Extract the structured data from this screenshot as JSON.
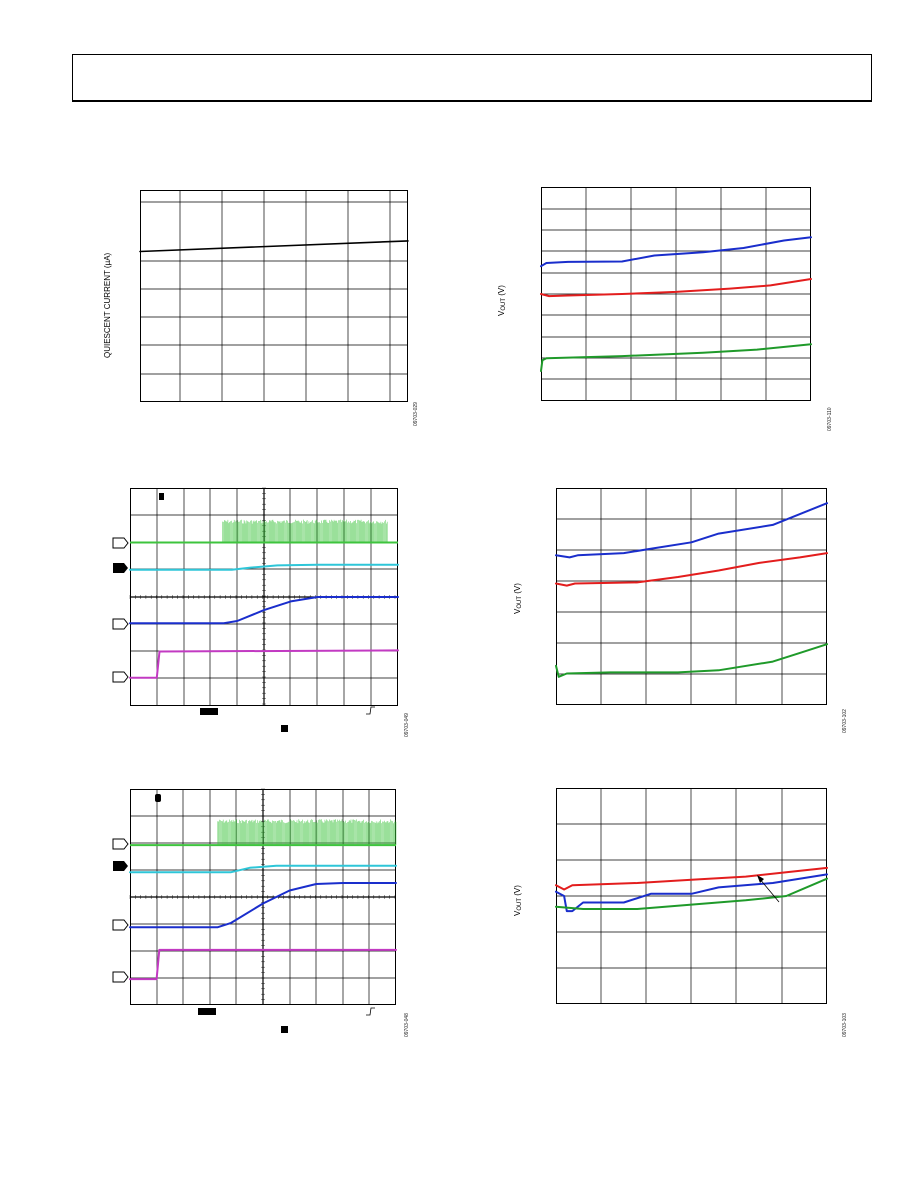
{
  "figures": [
    {
      "id": "fig-quiescent",
      "ylabel": "QUIESCENT CURRENT (µA)",
      "ref": "09703-029",
      "chart_data": {
        "type": "line",
        "series": [
          {
            "color": "#000000",
            "x": [
              0,
              1
            ],
            "y": [
              0.71,
              0.76
            ]
          }
        ]
      }
    },
    {
      "id": "fig-vout-1",
      "ylabel_main": "V",
      "ylabel_sub": "OUT",
      "ylabel_rest": " (V)",
      "ref": "09703-110",
      "chart_data": {
        "type": "line",
        "series": [
          {
            "color": "#1a2ecc",
            "x": [
              0,
              0.02,
              0.1,
              0.3,
              0.42,
              0.6,
              0.75,
              0.9,
              1.0
            ],
            "y": [
              0.63,
              0.645,
              0.65,
              0.652,
              0.68,
              0.695,
              0.715,
              0.75,
              0.765
            ]
          },
          {
            "color": "#e31d1d",
            "x": [
              0,
              0.03,
              0.1,
              0.3,
              0.5,
              0.7,
              0.85,
              1.0
            ],
            "y": [
              0.5,
              0.49,
              0.493,
              0.5,
              0.51,
              0.525,
              0.54,
              0.57
            ]
          },
          {
            "color": "#1f9a2a",
            "x": [
              0,
              0.005,
              0.02,
              0.3,
              0.6,
              0.8,
              1.0
            ],
            "y": [
              0.14,
              0.19,
              0.2,
              0.21,
              0.225,
              0.24,
              0.265
            ]
          }
        ]
      }
    },
    {
      "id": "fig-scope-1",
      "ref": "09703-049",
      "chart_data": {
        "type": "line",
        "series": [
          {
            "color": "#3ec43e",
            "role": "noise-burst",
            "x_start": 0.345,
            "x_end": 0.96,
            "y_base": 0.75,
            "y_top": 0.855
          },
          {
            "color": "#2ec6d8",
            "x": [
              0,
              0.38,
              0.45,
              0.55,
              0.7,
              1.0
            ],
            "y": [
              0.625,
              0.625,
              0.635,
              0.645,
              0.648,
              0.648
            ]
          },
          {
            "color": "#1a2ecc",
            "x": [
              0,
              0.35,
              0.4,
              0.5,
              0.6,
              0.7,
              0.8,
              1.0
            ],
            "y": [
              0.38,
              0.38,
              0.39,
              0.44,
              0.48,
              0.5,
              0.5,
              0.5
            ]
          },
          {
            "color": "#c23ac2",
            "x": [
              0,
              0.1,
              0.11,
              1.0
            ],
            "y": [
              0.13,
              0.13,
              0.25,
              0.255
            ]
          }
        ]
      }
    },
    {
      "id": "fig-vout-2",
      "ylabel_main": "V",
      "ylabel_sub": "OUT",
      "ylabel_rest": " (V)",
      "ref": "09703-102",
      "chart_data": {
        "type": "line",
        "series": [
          {
            "color": "#1a2ecc",
            "x": [
              0,
              0.05,
              0.08,
              0.25,
              0.35,
              0.5,
              0.6,
              0.8,
              1.0
            ],
            "y": [
              0.69,
              0.68,
              0.69,
              0.7,
              0.72,
              0.75,
              0.79,
              0.83,
              0.93
            ]
          },
          {
            "color": "#e31d1d",
            "x": [
              0,
              0.04,
              0.07,
              0.3,
              0.45,
              0.6,
              0.75,
              0.9,
              1.0
            ],
            "y": [
              0.56,
              0.55,
              0.56,
              0.565,
              0.59,
              0.62,
              0.655,
              0.68,
              0.7
            ]
          },
          {
            "color": "#1f9a2a",
            "x": [
              0,
              0.01,
              0.04,
              0.2,
              0.45,
              0.6,
              0.8,
              0.9,
              1.0
            ],
            "y": [
              0.18,
              0.13,
              0.145,
              0.15,
              0.15,
              0.16,
              0.2,
              0.24,
              0.28
            ]
          }
        ]
      }
    },
    {
      "id": "fig-scope-2",
      "ref": "09703-048",
      "chart_data": {
        "type": "line",
        "series": [
          {
            "color": "#3ec43e",
            "role": "noise-burst",
            "x_start": 0.33,
            "x_end": 1.0,
            "y_base": 0.74,
            "y_top": 0.86
          },
          {
            "color": "#2ec6d8",
            "x": [
              0,
              0.38,
              0.45,
              0.55,
              0.7,
              1.0
            ],
            "y": [
              0.615,
              0.615,
              0.635,
              0.645,
              0.645,
              0.645
            ]
          },
          {
            "color": "#1a2ecc",
            "x": [
              0,
              0.33,
              0.38,
              0.5,
              0.6,
              0.7,
              0.8,
              1.0
            ],
            "y": [
              0.36,
              0.36,
              0.38,
              0.47,
              0.53,
              0.56,
              0.565,
              0.565
            ]
          },
          {
            "color": "#c23ac2",
            "x": [
              0,
              0.1,
              0.11,
              1.0
            ],
            "y": [
              0.12,
              0.12,
              0.255,
              0.255
            ]
          }
        ]
      }
    },
    {
      "id": "fig-vout-3",
      "ylabel_main": "V",
      "ylabel_sub": "OUT",
      "ylabel_rest": " (V)",
      "ref": "09703-103",
      "chart_data": {
        "type": "line",
        "series": [
          {
            "color": "#e31d1d",
            "x": [
              0,
              0.03,
              0.06,
              0.3,
              0.5,
              0.7,
              0.85,
              1.0
            ],
            "y": [
              0.55,
              0.53,
              0.55,
              0.56,
              0.575,
              0.59,
              0.61,
              0.63
            ]
          },
          {
            "color": "#1a2ecc",
            "x": [
              0,
              0.03,
              0.04,
              0.06,
              0.1,
              0.25,
              0.35,
              0.5,
              0.6,
              0.8,
              1.0
            ],
            "y": [
              0.52,
              0.5,
              0.43,
              0.43,
              0.47,
              0.47,
              0.51,
              0.51,
              0.54,
              0.56,
              0.6
            ]
          },
          {
            "color": "#1f9a2a",
            "x": [
              0,
              0.1,
              0.3,
              0.5,
              0.7,
              0.85,
              1.0
            ],
            "y": [
              0.45,
              0.44,
              0.44,
              0.46,
              0.48,
              0.5,
              0.58
            ]
          }
        ]
      }
    }
  ]
}
